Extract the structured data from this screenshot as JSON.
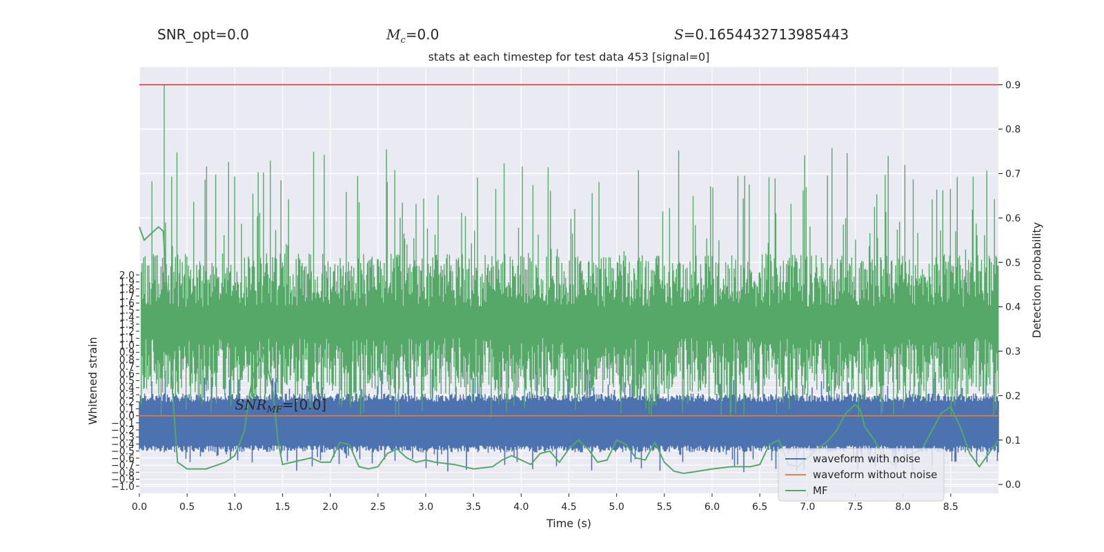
{
  "header": {
    "snr_opt": "SNR_opt=0.0",
    "mc_symbol": "M",
    "mc_sub": "c",
    "mc_value": "=0.0",
    "s_symbol": "S",
    "s_value": "=0.1654432713985443"
  },
  "chart_data": {
    "type": "line",
    "title": "stats at each timestep for test data 453 [signal=0]",
    "xlabel": "Time (s)",
    "ylabel_left": "Whitened strain",
    "ylabel_right": "Detection probability",
    "xlim": [
      0,
      9.0
    ],
    "x_ticks": [
      "0.0",
      "0.5",
      "1.0",
      "1.5",
      "2.0",
      "2.5",
      "3.0",
      "3.5",
      "4.0",
      "4.5",
      "5.0",
      "5.5",
      "6.0",
      "6.5",
      "7.0",
      "7.5",
      "8.0",
      "8.5"
    ],
    "y_left_lim": [
      -1.1,
      4.95
    ],
    "y_left_ticks": [
      "−1.0",
      "−0.9",
      "−0.8",
      "−0.7",
      "−0.6",
      "−0.5",
      "−0.4",
      "−0.3",
      "−0.2",
      "−0.1",
      "0.0",
      "0.1",
      "0.2",
      "0.3",
      "0.4",
      "0.5",
      "0.6",
      "0.7",
      "0.8",
      "0.9",
      "1.0",
      "1.1",
      "1.2",
      "1.3",
      "1.4",
      "1.5",
      "1.6",
      "1.7",
      "1.8",
      "1.9",
      "2.0"
    ],
    "y_right_lim": [
      -0.02,
      0.94
    ],
    "y_right_ticks": [
      "0.0",
      "0.1",
      "0.2",
      "0.3",
      "0.4",
      "0.5",
      "0.6",
      "0.7",
      "0.8",
      "0.9"
    ],
    "threshold": 0.9,
    "annotation": {
      "label": "SNR",
      "sub": "MF",
      "value": "=[0.0]",
      "x": 1.0,
      "y": 0.18
    },
    "mf_curve": {
      "x": [
        0.0,
        0.05,
        0.1,
        0.2,
        0.25,
        0.3,
        0.35,
        0.4,
        0.5,
        0.7,
        0.9,
        1.0,
        1.1,
        1.15,
        1.2,
        1.3,
        1.4,
        1.45,
        1.5,
        1.6,
        1.8,
        1.9,
        2.0,
        2.1,
        2.2,
        2.3,
        2.4,
        2.5,
        2.6,
        2.7,
        2.8,
        2.9,
        3.0,
        3.1,
        3.3,
        3.5,
        3.7,
        3.8,
        3.9,
        4.0,
        4.1,
        4.2,
        4.3,
        4.4,
        4.5,
        4.6,
        4.7,
        4.8,
        4.9,
        5.0,
        5.1,
        5.2,
        5.3,
        5.4,
        5.5,
        5.6,
        5.7,
        5.8,
        6.0,
        6.2,
        6.4,
        6.5,
        6.6,
        6.7,
        6.8,
        6.9,
        7.0,
        7.1,
        7.2,
        7.3,
        7.4,
        7.5,
        7.55,
        7.6,
        7.7,
        7.8,
        7.9,
        8.0,
        8.1,
        8.2,
        8.3,
        8.4,
        8.5,
        8.6,
        8.7,
        8.8,
        8.9,
        9.0
      ],
      "y": [
        0.58,
        0.55,
        0.56,
        0.58,
        0.57,
        0.4,
        0.2,
        0.05,
        0.035,
        0.035,
        0.05,
        0.065,
        0.12,
        0.2,
        0.25,
        0.3,
        0.21,
        0.1,
        0.045,
        0.05,
        0.06,
        0.05,
        0.05,
        0.095,
        0.09,
        0.04,
        0.035,
        0.04,
        0.07,
        0.08,
        0.06,
        0.05,
        0.055,
        0.05,
        0.045,
        0.035,
        0.04,
        0.055,
        0.065,
        0.055,
        0.045,
        0.07,
        0.075,
        0.05,
        0.08,
        0.1,
        0.08,
        0.05,
        0.055,
        0.1,
        0.09,
        0.06,
        0.055,
        0.095,
        0.05,
        0.03,
        0.025,
        0.028,
        0.035,
        0.04,
        0.04,
        0.045,
        0.09,
        0.1,
        0.045,
        0.04,
        0.06,
        0.08,
        0.095,
        0.12,
        0.16,
        0.18,
        0.17,
        0.13,
        0.1,
        0.06,
        0.045,
        0.06,
        0.07,
        0.08,
        0.12,
        0.16,
        0.175,
        0.13,
        0.07,
        0.04,
        0.07,
        0.1
      ]
    },
    "series": [
      {
        "name": "waveform with noise",
        "color": "#4c72b0"
      },
      {
        "name": "waveform without noise",
        "color": "#dd8452"
      },
      {
        "name": "MF",
        "color": "#55a868"
      }
    ],
    "threshold_color": "#c44e52",
    "background_color": "#eaeaf2",
    "grid": true,
    "legend_position": "lower-right"
  }
}
